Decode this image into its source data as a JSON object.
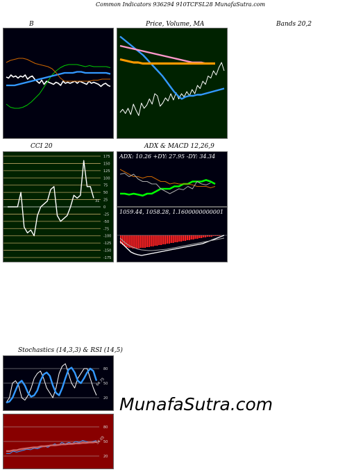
{
  "header": {
    "title": "Common Indicators 936294 910TCFSL28 MunafaSutra.com",
    "bb_label": "B",
    "price_label": "Price, Volume, MA",
    "bands_label": "Bands 20,2",
    "cci_label": "CCI 20",
    "adx_label": "ADX & MACD 12,26,9",
    "stoch_label": "Stochastics (14,3,3) & RSI (14,5)"
  },
  "watermark": "MunafaSutra.com",
  "chart_data": [
    {
      "type": "line",
      "id": "bollinger",
      "title": "",
      "series": [
        {
          "color": "#ffffff",
          "values": [
            56,
            55,
            58,
            56,
            57,
            55,
            57,
            56,
            58,
            54,
            56,
            57,
            54,
            52,
            50,
            53,
            49,
            52,
            51,
            50,
            49,
            51,
            50,
            48,
            52,
            50,
            51,
            50,
            51,
            52,
            50,
            52,
            51,
            50,
            49,
            52,
            50,
            51,
            50,
            49,
            47,
            49,
            50,
            48,
            47
          ]
        },
        {
          "color": "#00cc00",
          "values": [
            30,
            27,
            26,
            26,
            27,
            29,
            32,
            36,
            40,
            46,
            52,
            58,
            62,
            65,
            67,
            68,
            68,
            68,
            67,
            66,
            67,
            66,
            66,
            66,
            66,
            65
          ]
        },
        {
          "color": "#3399ff",
          "values": [
            48,
            48,
            48,
            49,
            50,
            51,
            52,
            53,
            54,
            55,
            56,
            57,
            58,
            59,
            60,
            60,
            60,
            61,
            61,
            60,
            60,
            60,
            60,
            60,
            60,
            59
          ]
        },
        {
          "color": "#cc6600",
          "values": [
            70,
            72,
            73,
            74,
            74,
            73,
            71,
            69,
            68,
            67,
            66,
            64,
            60,
            55,
            52,
            52,
            52,
            52,
            52,
            52,
            52,
            53,
            53,
            54,
            54,
            54
          ]
        }
      ]
    },
    {
      "type": "line",
      "id": "price",
      "title": "",
      "series": [
        {
          "color": "#ffffff",
          "values": [
            22,
            25,
            21,
            26,
            20,
            30,
            24,
            19,
            31,
            26,
            29,
            35,
            30,
            40,
            38,
            28,
            31,
            36,
            33,
            40,
            34,
            41,
            35,
            40,
            37,
            42,
            38,
            44,
            40,
            48,
            45,
            52,
            49,
            57,
            55,
            62,
            58,
            65,
            70,
            62
          ]
        },
        {
          "color": "#3399ff",
          "values": [
            95,
            92,
            89,
            86,
            83,
            80,
            77,
            73,
            69,
            65,
            61,
            57,
            52,
            47,
            42,
            38,
            35,
            37,
            38,
            38,
            39,
            39,
            40,
            41,
            42,
            43,
            44,
            45
          ]
        },
        {
          "color": "#ff99cc",
          "values": [
            86,
            85,
            84,
            83,
            82,
            81,
            80,
            79,
            78,
            77,
            76,
            75,
            74,
            73,
            72,
            71,
            70,
            70,
            70,
            69,
            69,
            69
          ]
        },
        {
          "color": "#ff9900",
          "values": [
            73,
            72,
            71,
            70,
            70,
            69,
            69,
            69,
            69,
            69,
            69,
            69,
            69,
            69,
            69,
            69,
            69,
            69,
            69,
            69,
            69,
            69
          ]
        }
      ]
    },
    {
      "type": "line",
      "id": "cci",
      "title": "",
      "ylim": [
        -175,
        175
      ],
      "yticks": [
        175,
        150,
        125,
        100,
        75,
        50,
        25,
        0,
        -25,
        -50,
        -75,
        -100,
        -125,
        -150,
        -175
      ],
      "yticklabels": [
        "175",
        "150",
        "125",
        "100",
        "75",
        "50",
        "25",
        "0",
        "-25",
        "-50",
        "-75",
        "-100",
        "-125",
        "-150",
        "-175"
      ],
      "last_value": "31",
      "series": [
        {
          "color": "#ffffff",
          "values": [
            0,
            0,
            0,
            0,
            50,
            -70,
            -90,
            -80,
            -100,
            -30,
            0,
            10,
            20,
            60,
            70,
            -30,
            -50,
            -40,
            -30,
            0,
            40,
            30,
            40,
            160,
            70,
            70,
            30
          ]
        }
      ]
    },
    {
      "type": "line",
      "id": "adx",
      "title": "",
      "text": "ADX: 10.26 +DY: 27.95 -DY: 34.34",
      "series": [
        {
          "color": "#00ff00",
          "values": [
            20,
            20,
            18,
            20,
            18,
            16,
            20,
            20,
            25,
            30,
            30,
            30,
            35,
            35,
            40,
            40,
            45,
            45,
            45,
            48,
            45,
            40
          ]
        },
        {
          "color": "#cc6600",
          "values": [
            70,
            65,
            60,
            55,
            55,
            52,
            55,
            55,
            50,
            45,
            45,
            40,
            42,
            40,
            40,
            40,
            38,
            35,
            35,
            35,
            32,
            35
          ]
        },
        {
          "color": "#aaaaaa",
          "values": [
            60,
            62,
            55,
            60,
            50,
            45,
            45,
            40,
            40,
            30,
            25,
            20,
            25,
            30,
            28,
            35,
            30,
            45,
            40,
            38,
            42
          ]
        }
      ]
    },
    {
      "type": "bar",
      "id": "macd",
      "title": "",
      "text": "1059.44, 1058.28, 1.1600000000001",
      "bars": [
        -12,
        -14,
        -16,
        -17,
        -18,
        -18,
        -19,
        -19,
        -19,
        -19,
        -18,
        -18,
        -18,
        -17,
        -17,
        -16,
        -16,
        -15,
        -15,
        -14,
        -14,
        -13,
        -13,
        -12,
        -12,
        -11,
        -11,
        -10,
        -10,
        -9,
        -9,
        -8,
        -8,
        -7,
        -7,
        -6,
        -6,
        -5,
        -5,
        -4,
        -4,
        -3,
        -3,
        -2,
        -2,
        -2,
        -1,
        -1,
        -1,
        -1,
        0
      ],
      "series": [
        {
          "color": "#ffffff",
          "values": [
            -50,
            -60,
            -70,
            -80,
            -85,
            -88,
            -90,
            -88,
            -86,
            -84,
            -82,
            -80,
            -78,
            -76,
            -74,
            -72,
            -70,
            -68,
            -66,
            -64,
            -62,
            -60,
            -58,
            -56,
            -52,
            -48,
            -44,
            -40,
            -36,
            -32
          ]
        },
        {
          "color": "#aaaaaa",
          "values": [
            -40,
            -50,
            -58,
            -64,
            -68,
            -72,
            -74,
            -75,
            -76,
            -76,
            -75,
            -74,
            -73,
            -72,
            -70,
            -68,
            -66,
            -64,
            -62,
            -60,
            -58,
            -56,
            -54,
            -52,
            -50,
            -48,
            -46,
            -44,
            -42,
            -40
          ]
        }
      ]
    },
    {
      "type": "line",
      "id": "stochastics",
      "title": "",
      "ylim": [
        0,
        100
      ],
      "yticks": [
        80,
        50,
        20
      ],
      "yticklabels": [
        "80",
        "50",
        "20"
      ],
      "last_value": "64.75",
      "series": [
        {
          "color": "#ffffff",
          "values": [
            10,
            20,
            50,
            55,
            45,
            20,
            15,
            25,
            40,
            60,
            70,
            75,
            60,
            40,
            30,
            20,
            40,
            70,
            85,
            90,
            70,
            50,
            40,
            60,
            70,
            80,
            80,
            60,
            40,
            25
          ]
        },
        {
          "color": "#3399ff",
          "values": [
            10,
            12,
            20,
            35,
            50,
            55,
            45,
            30,
            22,
            25,
            35,
            55,
            68,
            72,
            65,
            45,
            30,
            25,
            40,
            60,
            78,
            82,
            72,
            55,
            50,
            60,
            72,
            80,
            75,
            55
          ]
        }
      ]
    },
    {
      "type": "line",
      "id": "rsi",
      "title": "",
      "ylim": [
        0,
        100
      ],
      "yticks": [
        80,
        50,
        20
      ],
      "yticklabels": [
        "80",
        "50",
        "20"
      ],
      "last_value": "56.05",
      "series": [
        {
          "color": "#3399ff",
          "values": [
            25,
            25,
            30,
            28,
            30,
            32,
            34,
            33,
            36,
            35,
            38,
            40,
            38,
            42,
            45,
            42,
            48,
            45,
            48,
            46,
            50,
            48,
            52,
            50,
            48,
            50,
            52
          ]
        },
        {
          "color": "#cc6666",
          "values": [
            30,
            30,
            32,
            32,
            34,
            35,
            36,
            37,
            38,
            38,
            40,
            40,
            41,
            42,
            42,
            43,
            44,
            44,
            45,
            45,
            46,
            46,
            47,
            47,
            48,
            48,
            49
          ]
        }
      ]
    }
  ]
}
